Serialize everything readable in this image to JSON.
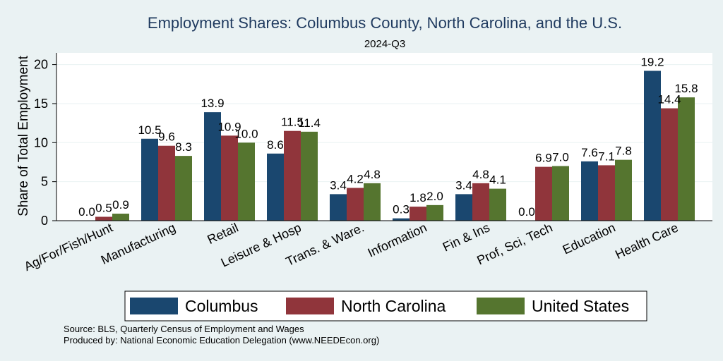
{
  "chart_data": {
    "type": "bar",
    "title": "Employment Shares: Columbus County, North Carolina, and the U.S.",
    "subtitle": "2024-Q3",
    "ylabel": "Share of Total Employment",
    "xlabel": "",
    "ylim": [
      0,
      21.5
    ],
    "yticks": [
      0,
      5,
      10,
      15,
      20
    ],
    "grid": true,
    "legend_position": "bottom",
    "categories": [
      "Ag/For/Fish/Hunt",
      "Manufacturing",
      "Retail",
      "Leisure & Hosp",
      "Trans. & Ware.",
      "Information",
      "Fin & Ins",
      "Prof, Sci, Tech",
      "Education",
      "Health Care"
    ],
    "series": [
      {
        "name": "Columbus",
        "color": "#1a476f",
        "values": [
          0.0,
          10.5,
          13.9,
          8.6,
          3.4,
          0.3,
          3.4,
          0.0,
          7.6,
          19.2
        ]
      },
      {
        "name": "North Carolina",
        "color": "#90353b",
        "values": [
          0.5,
          9.6,
          10.9,
          11.5,
          4.2,
          1.8,
          4.8,
          6.9,
          7.1,
          14.4
        ]
      },
      {
        "name": "United States",
        "color": "#55752f",
        "values": [
          0.9,
          8.3,
          10.0,
          11.4,
          4.8,
          2.0,
          4.1,
          7.0,
          7.8,
          15.8
        ]
      }
    ]
  },
  "source_lines": [
    "Source: BLS, Quarterly Census of Employment and Wages",
    "Produced by: National Economic Education Delegation (www.NEEDEcon.org)"
  ]
}
